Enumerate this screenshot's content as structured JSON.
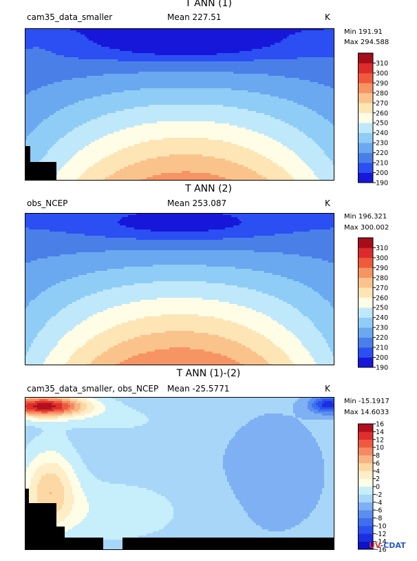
{
  "chart_data": [
    {
      "type": "heatmap",
      "title": "T ANN (1)",
      "left_text": "cam35_data_smaller",
      "mean_text": "Mean 227.51",
      "units": "K",
      "min_text": "Min 191.91",
      "max_text": "Max 294.588",
      "levels": [
        190,
        200,
        210,
        220,
        230,
        240,
        250,
        260,
        270,
        280,
        290,
        300,
        310
      ],
      "level_labels": [
        "190",
        "200",
        "210",
        "220",
        "230",
        "240",
        "250",
        "260",
        "270",
        "280",
        "290",
        "300",
        "310"
      ],
      "colors": [
        "#1717d9",
        "#2b4ff2",
        "#4a7fe8",
        "#6aa8f0",
        "#8fcdf7",
        "#bfe8fb",
        "#fffde6",
        "#fde5b6",
        "#fbc38c",
        "#f79464",
        "#ef5a3a",
        "#dc2b2b",
        "#a50d1a"
      ],
      "masked": true
    },
    {
      "type": "heatmap",
      "title": "T ANN (2)",
      "left_text": "obs_NCEP",
      "mean_text": "Mean 253.087",
      "units": "K",
      "min_text": "Min 196.321",
      "max_text": "Max 300.002",
      "levels": [
        190,
        200,
        210,
        220,
        230,
        240,
        250,
        260,
        270,
        280,
        290,
        300,
        310
      ],
      "level_labels": [
        "190",
        "200",
        "210",
        "220",
        "230",
        "240",
        "250",
        "260",
        "270",
        "280",
        "290",
        "300",
        "310"
      ],
      "colors": [
        "#1717d9",
        "#2b4ff2",
        "#4a7fe8",
        "#6aa8f0",
        "#8fcdf7",
        "#bfe8fb",
        "#fffde6",
        "#fde5b6",
        "#fbc38c",
        "#f79464",
        "#ef5a3a",
        "#dc2b2b",
        "#a50d1a"
      ],
      "masked": false
    },
    {
      "type": "heatmap",
      "title": "T ANN (1)-(2)",
      "left_text": "cam35_data_smaller, obs_NCEP",
      "mean_text": "Mean -25.5771",
      "units": "K",
      "min_text": "Min -15.1917",
      "max_text": "Max 14.6033",
      "levels": [
        -16,
        -14,
        -12,
        -10,
        -8,
        -6,
        -4,
        -2,
        0,
        2,
        4,
        6,
        8,
        10,
        12,
        14,
        16
      ],
      "level_labels": [
        "-16",
        "-14",
        "-12",
        "-10",
        "-8",
        "-6",
        "-4",
        "-2",
        "0",
        "2",
        "4",
        "6",
        "8",
        "10",
        "12",
        "14",
        "16"
      ],
      "colors": [
        "#1010c8",
        "#1a30e0",
        "#2b50f0",
        "#3d6fee",
        "#5a8ef0",
        "#7eb0f3",
        "#a8d6f8",
        "#c6eefb",
        "#fffde6",
        "#fdeec8",
        "#fcd8a4",
        "#f9b483",
        "#f58a62",
        "#ee5a3f",
        "#dd2f2e",
        "#b0101e"
      ],
      "masked": true
    }
  ],
  "logo": {
    "text_u": "UV",
    "text_rest": "-CDAT"
  }
}
